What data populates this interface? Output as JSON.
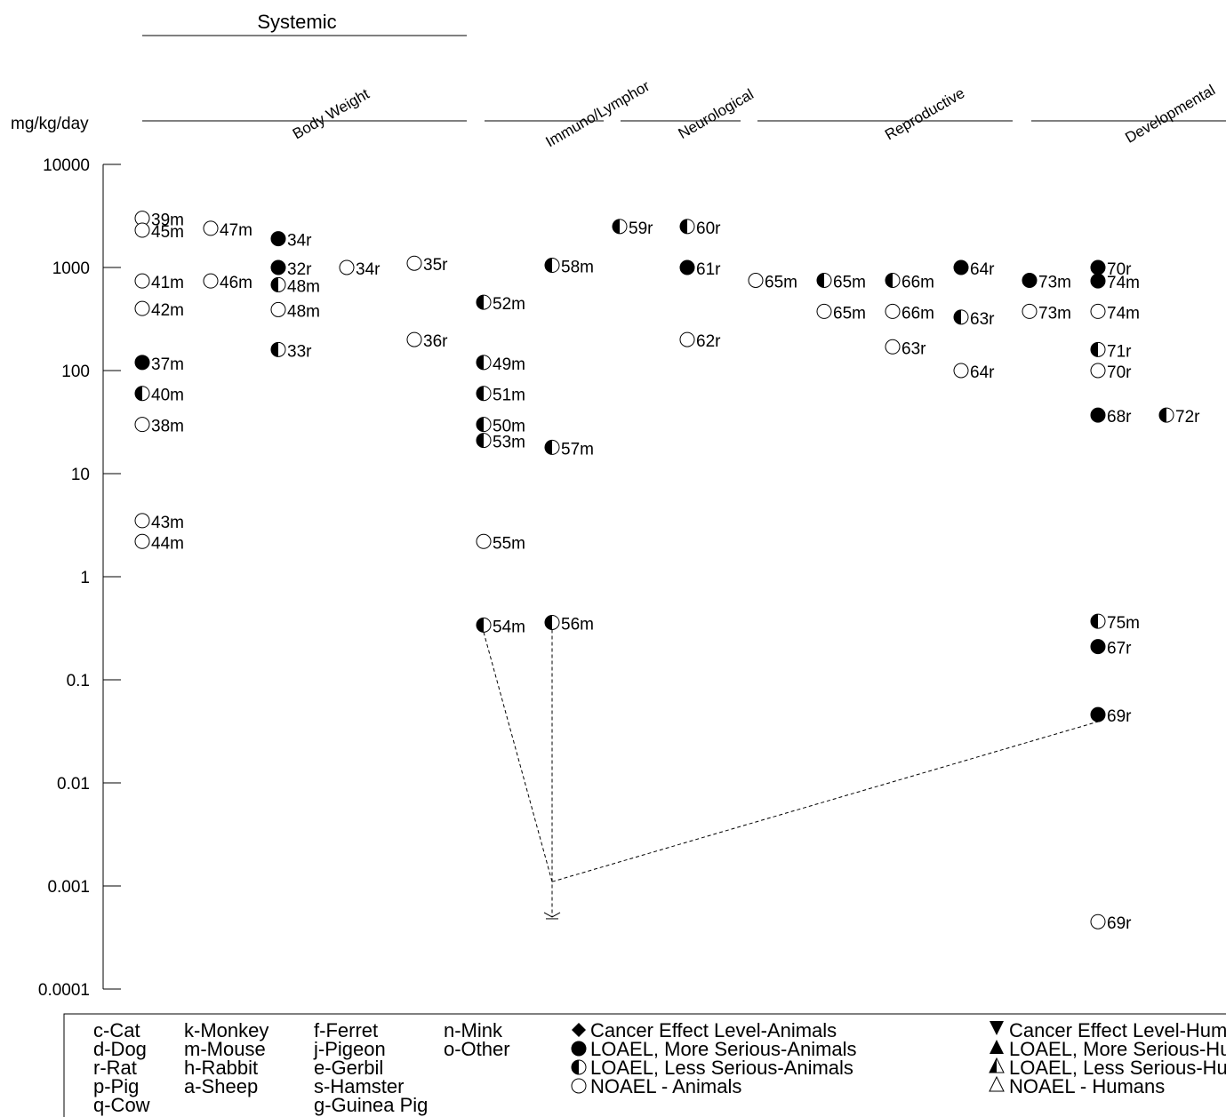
{
  "chart_data": {
    "type": "scatter",
    "title": "",
    "xlabel": "",
    "ylabel": "mg/kg/day",
    "yscale": "log",
    "ylim": [
      0.0001,
      10000
    ],
    "yticks": [
      {
        "value": 10000,
        "label": "10000"
      },
      {
        "value": 1000,
        "label": "1000"
      },
      {
        "value": 100,
        "label": "100"
      },
      {
        "value": 10,
        "label": "10"
      },
      {
        "value": 1,
        "label": "1"
      },
      {
        "value": 0.1,
        "label": "0.1"
      },
      {
        "value": 0.01,
        "label": "0.01"
      },
      {
        "value": 0.001,
        "label": "0.001"
      },
      {
        "value": 0.0001,
        "label": "0.0001"
      }
    ],
    "group_header": "Systemic",
    "categories": [
      "Body Weight",
      "Immuno/Lymphor",
      "Neurological",
      "Reproductive",
      "Developmental"
    ],
    "columns": 16,
    "points": [
      {
        "col": 0,
        "value": 3000,
        "label": "39m",
        "marker": "noael"
      },
      {
        "col": 0,
        "value": 2300,
        "label": "45m",
        "marker": "noael"
      },
      {
        "col": 0,
        "value": 740,
        "label": "41m",
        "marker": "noael"
      },
      {
        "col": 0,
        "value": 400,
        "label": "42m",
        "marker": "noael"
      },
      {
        "col": 0,
        "value": 120,
        "label": "37m",
        "marker": "loael-more"
      },
      {
        "col": 0,
        "value": 60,
        "label": "40m",
        "marker": "loael-less"
      },
      {
        "col": 0,
        "value": 30,
        "label": "38m",
        "marker": "noael"
      },
      {
        "col": 0,
        "value": 3.5,
        "label": "43m",
        "marker": "noael"
      },
      {
        "col": 0,
        "value": 2.2,
        "label": "44m",
        "marker": "noael"
      },
      {
        "col": 1,
        "value": 2400,
        "label": "47m",
        "marker": "noael"
      },
      {
        "col": 1,
        "value": 740,
        "label": "46m",
        "marker": "noael"
      },
      {
        "col": 2,
        "value": 1900,
        "label": "34r",
        "marker": "loael-more"
      },
      {
        "col": 2,
        "value": 1000,
        "label": "32r",
        "marker": "loael-more"
      },
      {
        "col": 2,
        "value": 680,
        "label": "48m",
        "marker": "loael-less"
      },
      {
        "col": 2,
        "value": 390,
        "label": "48m",
        "marker": "noael"
      },
      {
        "col": 2,
        "value": 160,
        "label": "33r",
        "marker": "loael-less"
      },
      {
        "col": 3,
        "value": 1000,
        "label": "34r",
        "marker": "noael"
      },
      {
        "col": 4,
        "value": 1100,
        "label": "35r",
        "marker": "noael"
      },
      {
        "col": 4,
        "value": 200,
        "label": "36r",
        "marker": "noael"
      },
      {
        "col": 5,
        "value": 460,
        "label": "52m",
        "marker": "loael-less"
      },
      {
        "col": 5,
        "value": 120,
        "label": "49m",
        "marker": "loael-less"
      },
      {
        "col": 5,
        "value": 60,
        "label": "51m",
        "marker": "loael-less"
      },
      {
        "col": 5,
        "value": 30,
        "label": "50m",
        "marker": "loael-less"
      },
      {
        "col": 5,
        "value": 21,
        "label": "53m",
        "marker": "loael-less"
      },
      {
        "col": 5,
        "value": 2.2,
        "label": "55m",
        "marker": "noael"
      },
      {
        "col": 5,
        "value": 0.34,
        "label": "54m",
        "marker": "loael-less"
      },
      {
        "col": 6,
        "value": 1050,
        "label": "58m",
        "marker": "loael-less"
      },
      {
        "col": 6,
        "value": 18,
        "label": "57m",
        "marker": "loael-less"
      },
      {
        "col": 6,
        "value": 0.36,
        "label": "56m",
        "marker": "loael-less"
      },
      {
        "col": 7,
        "value": 2500,
        "label": "59r",
        "marker": "loael-less"
      },
      {
        "col": 8,
        "value": 2500,
        "label": "60r",
        "marker": "loael-less"
      },
      {
        "col": 8,
        "value": 1000,
        "label": "61r",
        "marker": "loael-more"
      },
      {
        "col": 8,
        "value": 200,
        "label": "62r",
        "marker": "noael"
      },
      {
        "col": 9,
        "value": 750,
        "label": "65m",
        "marker": "noael"
      },
      {
        "col": 10,
        "value": 750,
        "label": "65m",
        "marker": "loael-less"
      },
      {
        "col": 10,
        "value": 375,
        "label": "65m",
        "marker": "noael"
      },
      {
        "col": 11,
        "value": 750,
        "label": "66m",
        "marker": "loael-less"
      },
      {
        "col": 11,
        "value": 375,
        "label": "66m",
        "marker": "noael"
      },
      {
        "col": 11,
        "value": 170,
        "label": "63r",
        "marker": "noael"
      },
      {
        "col": 12,
        "value": 1000,
        "label": "64r",
        "marker": "loael-more"
      },
      {
        "col": 12,
        "value": 330,
        "label": "63r",
        "marker": "loael-less"
      },
      {
        "col": 12,
        "value": 100,
        "label": "64r",
        "marker": "noael"
      },
      {
        "col": 13,
        "value": 750,
        "label": "73m",
        "marker": "loael-more"
      },
      {
        "col": 13,
        "value": 375,
        "label": "73m",
        "marker": "noael"
      },
      {
        "col": 14,
        "value": 1000,
        "label": "70r",
        "marker": "loael-more"
      },
      {
        "col": 14,
        "value": 740,
        "label": "74m",
        "marker": "loael-more"
      },
      {
        "col": 14,
        "value": 375,
        "label": "74m",
        "marker": "noael"
      },
      {
        "col": 14,
        "value": 160,
        "label": "71r",
        "marker": "loael-less"
      },
      {
        "col": 14,
        "value": 100,
        "label": "70r",
        "marker": "noael"
      },
      {
        "col": 14,
        "value": 37,
        "label": "68r",
        "marker": "loael-more"
      },
      {
        "col": 14,
        "value": 0.37,
        "label": "75m",
        "marker": "loael-less"
      },
      {
        "col": 14,
        "value": 0.21,
        "label": "67r",
        "marker": "loael-more"
      },
      {
        "col": 14,
        "value": 0.046,
        "label": "69r",
        "marker": "loael-more"
      },
      {
        "col": 14,
        "value": 0.00045,
        "label": "69r",
        "marker": "noael"
      },
      {
        "col": 15,
        "value": 37,
        "label": "72r",
        "marker": "loael-less"
      }
    ],
    "mrl_value": 0.0005,
    "legend": {
      "species_columns": [
        [
          "c-Cat",
          "d-Dog",
          "r-Rat",
          "p-Pig",
          "q-Cow"
        ],
        [
          "k-Monkey",
          "m-Mouse",
          "h-Rabbit",
          "a-Sheep"
        ],
        [
          "f-Ferret",
          "j-Pigeon",
          "e-Gerbil",
          "s-Hamster",
          "g-Guinea Pig"
        ],
        [
          "n-Mink",
          "o-Other"
        ]
      ],
      "animal_markers": [
        {
          "marker": "cancer-animal",
          "label": "Cancer Effect Level-Animals"
        },
        {
          "marker": "loael-more",
          "label": "LOAEL, More Serious-Animals"
        },
        {
          "marker": "loael-less",
          "label": "LOAEL, Less Serious-Animals"
        },
        {
          "marker": "noael",
          "label": "NOAEL - Animals"
        }
      ],
      "human_markers": [
        {
          "marker": "cancer-human",
          "label": "Cancer Effect Level-Humans"
        },
        {
          "marker": "loael-more-human",
          "label": "LOAEL, More Serious-Humans"
        },
        {
          "marker": "loael-less-human",
          "label": "LOAEL, Less Serious-Humans"
        },
        {
          "marker": "noael-human",
          "label": "NOAEL - Humans"
        }
      ]
    }
  }
}
